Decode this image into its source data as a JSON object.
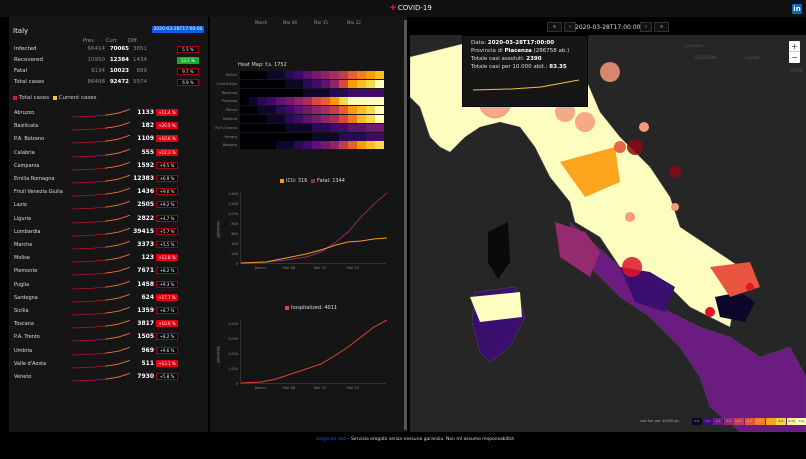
{
  "header": {
    "title": "COVID-19",
    "linkedin_label": "in"
  },
  "summary": {
    "country": "Italy",
    "date": "2020-03-28T17:00:00",
    "columns": [
      "Prev.",
      "Curr.",
      "Diff."
    ],
    "rows": [
      {
        "label": "Infected",
        "prev": "66414",
        "curr": "70065",
        "diff": "3651",
        "pct": "5.5 %",
        "style": "dark"
      },
      {
        "label": "Recovered",
        "prev": "10950",
        "curr": "12384",
        "diff": "1434",
        "pct": "13.1 %",
        "style": "green"
      },
      {
        "label": "Fatal",
        "prev": "9134",
        "curr": "10023",
        "diff": "889",
        "pct": "9.7 %",
        "style": "dark"
      },
      {
        "label": "Total cases",
        "prev": "86498",
        "curr": "92472",
        "diff": "5974",
        "pct": "6.9 %",
        "style": "dark"
      }
    ],
    "legend": {
      "total": "Total cases",
      "current": "Current cases",
      "total_color": "#e0142a",
      "current_color": "#f5c043"
    }
  },
  "regions": [
    {
      "name": "Abruzzo",
      "value": "1133",
      "pct": "+11.4 %",
      "style": "red"
    },
    {
      "name": "Basilicata",
      "value": "182",
      "pct": "+20.5 %",
      "style": "red"
    },
    {
      "name": "P.A. Bolzano",
      "value": "1109",
      "pct": "+10.6 %",
      "style": "red"
    },
    {
      "name": "Calabria",
      "value": "555",
      "pct": "+12.3 %",
      "style": "red"
    },
    {
      "name": "Campania",
      "value": "1592",
      "pct": "+9.5 %",
      "style": "dark"
    },
    {
      "name": "Emilia Romagna",
      "value": "12383",
      "pct": "+6.9 %",
      "style": "dark"
    },
    {
      "name": "Friuli Venezia Giulia",
      "value": "1436",
      "pct": "+9.0 %",
      "style": "dark"
    },
    {
      "name": "Lazio",
      "value": "2505",
      "pct": "+9.2 %",
      "style": "dark"
    },
    {
      "name": "Liguria",
      "value": "2822",
      "pct": "+4.7 %",
      "style": "dark"
    },
    {
      "name": "Lombardia",
      "value": "39415",
      "pct": "+5.7 %",
      "style": "dark"
    },
    {
      "name": "Marche",
      "value": "3373",
      "pct": "+5.5 %",
      "style": "dark"
    },
    {
      "name": "Molise",
      "value": "123",
      "pct": "+12.8 %",
      "style": "red"
    },
    {
      "name": "Piemonte",
      "value": "7671",
      "pct": "+8.2 %",
      "style": "dark"
    },
    {
      "name": "Puglia",
      "value": "1458",
      "pct": "+9.3 %",
      "style": "dark"
    },
    {
      "name": "Sardegna",
      "value": "624",
      "pct": "+17.7 %",
      "style": "red"
    },
    {
      "name": "Sicilia",
      "value": "1359",
      "pct": "+8.7 %",
      "style": "dark"
    },
    {
      "name": "Toscana",
      "value": "3817",
      "pct": "+10.6 %",
      "style": "red"
    },
    {
      "name": "P.A. Trento",
      "value": "1505",
      "pct": "+8.2 %",
      "style": "dark"
    },
    {
      "name": "Umbria",
      "value": "969",
      "pct": "+9.6 %",
      "style": "dark"
    },
    {
      "name": "Valle d'Aosta",
      "value": "511",
      "pct": "+13.1 %",
      "style": "red"
    },
    {
      "name": "Veneto",
      "value": "7930",
      "pct": "+5.8 %",
      "style": "dark"
    }
  ],
  "middle": {
    "top_axis": [
      "March",
      "Mar 08",
      "Mar 15",
      "Mar 22"
    ],
    "heatmap": {
      "title": "Heat Map: f.s. 1752",
      "rows": [
        "Rimini",
        "Lt'ed Emilia",
        "Ravenna",
        "Piacenza",
        "Parma",
        "Modena",
        "Forlì-Cesena",
        "Ferrara",
        "Bologna"
      ]
    },
    "icu_chart": {
      "legend": [
        {
          "label": "ICU: 316",
          "color": "#f59a23"
        },
        {
          "label": "Fatal: 1344",
          "color": "#8e2a6b"
        }
      ],
      "yticks": [
        "1,400",
        "1,200",
        "1,000",
        "800",
        "600",
        "400",
        "200",
        "0"
      ],
      "xticks": [
        "March",
        "Mar 08",
        "Mar 15",
        "Mar 22"
      ],
      "ylabel": "persone"
    },
    "hosp_chart": {
      "legend": [
        {
          "label": "hospitalized: 4011",
          "color": "#e0442a"
        }
      ],
      "yticks": [
        "4,000",
        "3,000",
        "2,000",
        "1,000",
        "0"
      ],
      "xticks": [
        "March",
        "Mar 08",
        "Mar 15",
        "Mar 22"
      ],
      "ylabel": "persone"
    }
  },
  "map": {
    "nav": {
      "first": "«",
      "prev": "‹",
      "date": "2020-03-28T17:00:00",
      "next": "›",
      "last": "»"
    },
    "tooltip": {
      "date_label": "Data:",
      "date": "2020-03-28T17:00:00",
      "prov_label": "Provincia di",
      "prov": "Piacenza",
      "pop": "(286758 ab.)",
      "abs_label": "Totale casi assoluti:",
      "abs": "2390",
      "rel_label": "Totale casi per 10.000 abit.:",
      "rel": "83.35"
    },
    "zoom_in": "+",
    "zoom_out": "−",
    "labels": [
      "LJUBLJANA",
      "SLOVENIA",
      "ZAGREB",
      "CROA"
    ],
    "legend": {
      "title": "casi tot. per 10000 ab.",
      "bins": [
        {
          "label": "0-1",
          "color": "#0d0829"
        },
        {
          "label": "1-2",
          "color": "#3b0f70"
        },
        {
          "label": "2-3",
          "color": "#6a1c81"
        },
        {
          "label": "3-4",
          "color": "#962a70"
        },
        {
          "label": "4-5",
          "color": "#c63d5f"
        },
        {
          "label": "5-6",
          "color": "#e9543f"
        },
        {
          "label": "6-7",
          "color": "#f97d25"
        },
        {
          "label": "7-8",
          "color": "#fba41c"
        },
        {
          "label": "8-9",
          "color": "#f6d14a"
        },
        {
          "label": "9-10",
          "color": "#faf0a0"
        },
        {
          "label": "10+",
          "color": "#fcfdbf"
        }
      ]
    }
  },
  "footer": {
    "source_link": "Sorgente dati",
    "disclaimer": " - Servizio erogato senza nessuna garanzia. Non mi assumo responsabilità"
  }
}
